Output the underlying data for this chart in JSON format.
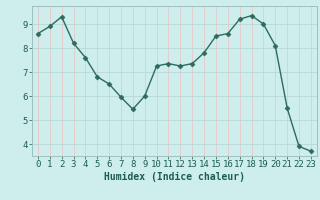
{
  "x": [
    0,
    1,
    2,
    3,
    4,
    5,
    6,
    7,
    8,
    9,
    10,
    11,
    12,
    13,
    14,
    15,
    16,
    17,
    18,
    19,
    20,
    21,
    22,
    23
  ],
  "y": [
    8.6,
    8.9,
    9.3,
    8.2,
    7.6,
    6.8,
    6.5,
    5.95,
    5.45,
    6.0,
    7.25,
    7.35,
    7.25,
    7.35,
    7.8,
    8.5,
    8.6,
    9.2,
    9.35,
    9.0,
    8.1,
    5.5,
    3.9,
    3.7
  ],
  "line_color": "#2e6b5e",
  "bg_color": "#ceeeed",
  "grid_color": "#b8d8d6",
  "xlabel": "Humidex (Indice chaleur)",
  "xlim": [
    -0.5,
    23.5
  ],
  "ylim": [
    3.5,
    9.75
  ],
  "yticks": [
    4,
    5,
    6,
    7,
    8,
    9
  ],
  "xticks": [
    0,
    1,
    2,
    3,
    4,
    5,
    6,
    7,
    8,
    9,
    10,
    11,
    12,
    13,
    14,
    15,
    16,
    17,
    18,
    19,
    20,
    21,
    22,
    23
  ],
  "marker": "D",
  "markersize": 2.5,
  "linewidth": 1.0,
  "font_color": "#1e5c50",
  "xlabel_fontsize": 7,
  "tick_fontsize": 6.5
}
